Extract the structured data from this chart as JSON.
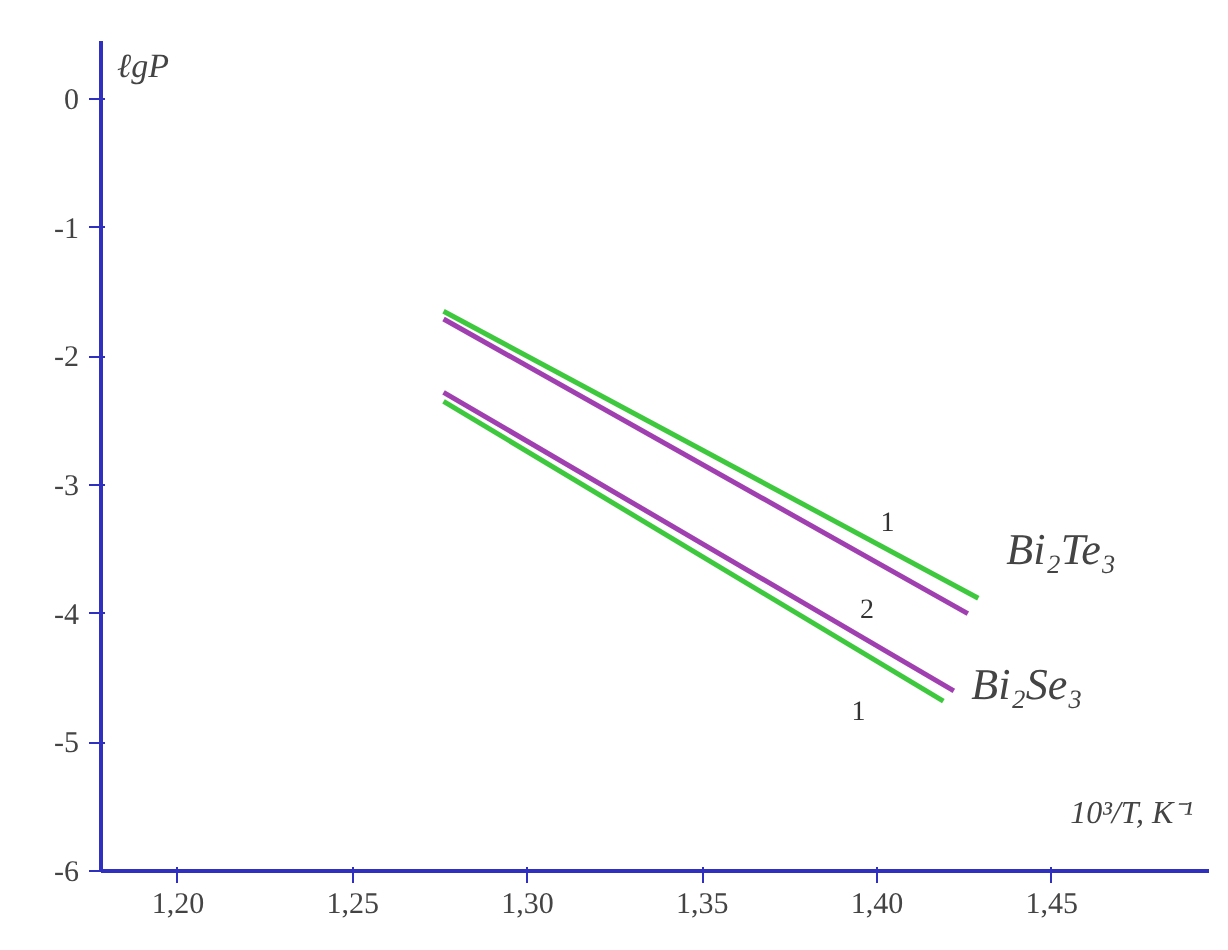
{
  "chart_data": {
    "type": "line",
    "xlabel": "10³/T, K⁻¹",
    "ylabel": "ℓgP",
    "xlim": [
      1.178,
      1.495
    ],
    "ylim": [
      -6,
      0.45
    ],
    "xticks": [
      {
        "value": 1.2,
        "label": "1,20"
      },
      {
        "value": 1.25,
        "label": "1,25"
      },
      {
        "value": 1.3,
        "label": "1,30"
      },
      {
        "value": 1.35,
        "label": "1,35"
      },
      {
        "value": 1.4,
        "label": "1,40"
      },
      {
        "value": 1.45,
        "label": "1,45"
      }
    ],
    "yticks": [
      0,
      -1,
      -2,
      -3,
      -4,
      -5,
      -6
    ],
    "grid": false,
    "marker": "none",
    "line_style": "solid",
    "series": [
      {
        "color": "#3ec83e",
        "x": [
          1.276,
          1.429
        ],
        "values": [
          -1.65,
          -3.88
        ]
      },
      {
        "color": "#a040b0",
        "x": [
          1.276,
          1.426
        ],
        "values": [
          -1.71,
          -4.0
        ]
      },
      {
        "color": "#a040b0",
        "x": [
          1.276,
          1.422
        ],
        "values": [
          -2.28,
          -4.6
        ]
      },
      {
        "color": "#3ec83e",
        "x": [
          1.276,
          1.419
        ],
        "values": [
          -2.35,
          -4.68
        ]
      }
    ],
    "annotations": [
      "1",
      "2",
      "1",
      "Bi₂Te₃",
      "Bi₂Se₃"
    ]
  }
}
